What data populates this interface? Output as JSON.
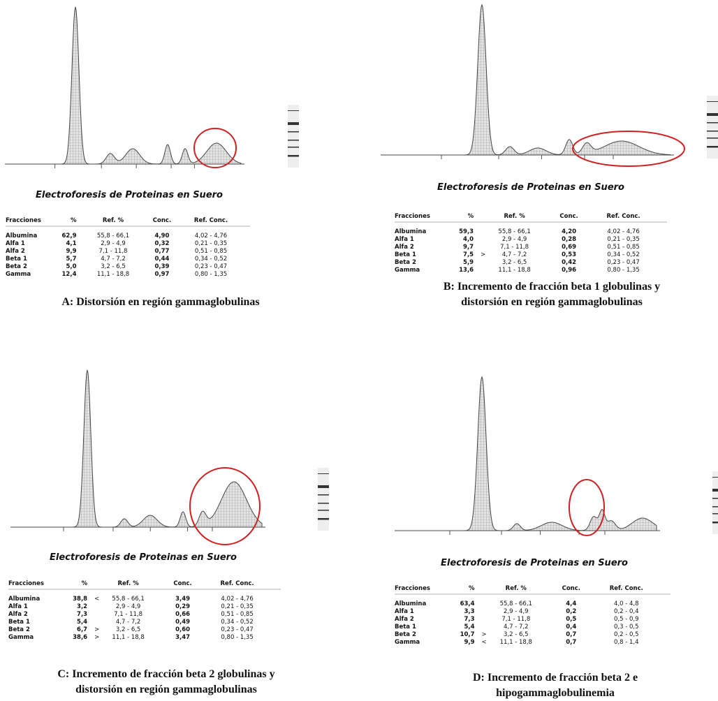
{
  "panels": [
    {
      "title": "Electroforesis de Proteinas en Suero",
      "header": [
        "Fracciones",
        "%",
        "Ref. %",
        "Conc.",
        "Ref. Conc."
      ],
      "rows": [
        {
          "fraction": "Albumina",
          "pct": "62,9",
          "ref": "55,8 - 66,1",
          "conc": "4,90",
          "ref_conc": "4,02 - 4,76"
        },
        {
          "fraction": "Alfa 1",
          "pct": "4,1",
          "ref": "2,9 - 4,9",
          "conc": "0,32",
          "ref_conc": "0,21 - 0,35"
        },
        {
          "fraction": "Alfa 2",
          "pct": "9,9",
          "ref": "7,1 - 11,8",
          "conc": "0,77",
          "ref_conc": "0,51 - 0,85"
        },
        {
          "fraction": "Beta 1",
          "pct": "5,7",
          "ref": "4,7 - 7,2",
          "conc": "0,44",
          "ref_conc": "0,34 - 0,52"
        },
        {
          "fraction": "Beta 2",
          "pct": "5,0",
          "ref": "3,2 - 6,5",
          "conc": "0,39",
          "ref_conc": "0,23 - 0,47"
        },
        {
          "fraction": "Gamma",
          "pct": "12,4",
          "ref": "11,1 - 18,8",
          "conc": "0,97",
          "ref_conc": "0,80 - 1,35"
        }
      ],
      "caption": [
        "A: Distorsión en región gammaglobulinas"
      ]
    },
    {
      "title": "Electroforesis de Proteinas en Suero",
      "header": [
        "Fracciones",
        "%",
        "Ref. %",
        "Conc.",
        "Ref. Conc."
      ],
      "rows": [
        {
          "fraction": "Albumina",
          "pct": "59,3",
          "ref": "55,8 - 66,1",
          "conc": "4,20",
          "ref_conc": "4,02 - 4,76"
        },
        {
          "fraction": "Alfa 1",
          "pct": "4,0",
          "ref": "2,9 - 4,9",
          "conc": "0,28",
          "ref_conc": "0,21 - 0,35"
        },
        {
          "fraction": "Alfa 2",
          "pct": "9,7",
          "ref": "7,1 - 11,8",
          "conc": "0,69",
          "ref_conc": "0,51 - 0,85"
        },
        {
          "fraction": "Beta 1",
          "pct": "7,5",
          "flag": ">",
          "ref": "4,7 - 7,2",
          "conc": "0,53",
          "ref_conc": "0,34 - 0,52"
        },
        {
          "fraction": "Beta 2",
          "pct": "5,9",
          "ref": "3,2 - 6,5",
          "conc": "0,42",
          "ref_conc": "0,23 - 0,47"
        },
        {
          "fraction": "Gamma",
          "pct": "13,6",
          "ref": "11,1 - 18,8",
          "conc": "0,96",
          "ref_conc": "0,80 - 1,35"
        }
      ],
      "caption": [
        "B: Incremento de fracción beta 1 globulinas y",
        "distorsión en región gammaglobulinas"
      ]
    },
    {
      "title": "Electroforesis de Proteinas en Suero",
      "header": [
        "Fracciones",
        "%",
        "Ref. %",
        "Conc.",
        "Ref. Conc."
      ],
      "rows": [
        {
          "fraction": "Albumina",
          "pct": "38,8",
          "flag": "<",
          "ref": "55,8 - 66,1",
          "conc": "3,49",
          "ref_conc": "4,02 - 4,76"
        },
        {
          "fraction": "Alfa 1",
          "pct": "3,2",
          "ref": "2,9 - 4,9",
          "conc": "0,29",
          "ref_conc": "0,21 - 0,35"
        },
        {
          "fraction": "Alfa 2",
          "pct": "7,3",
          "ref": "7,1 - 11,8",
          "conc": "0,66",
          "ref_conc": "0,51 - 0,85"
        },
        {
          "fraction": "Beta 1",
          "pct": "5,4",
          "ref": "4,7 - 7,2",
          "conc": "0,49",
          "ref_conc": "0,34 - 0,52"
        },
        {
          "fraction": "Beta 2",
          "pct": "6,7",
          "flag": ">",
          "ref": "3,2 - 6,5",
          "conc": "0,60",
          "ref_conc": "0,23 - 0,47"
        },
        {
          "fraction": "Gamma",
          "pct": "38,6",
          "flag": ">",
          "ref": "11,1 - 18,8",
          "conc": "3,47",
          "ref_conc": "0,80 - 1,35"
        }
      ],
      "caption": [
        "C: Incremento de fracción beta 2 globulinas y",
        "distorsión en región gammaglobulinas"
      ]
    },
    {
      "title": "Electroforesis de Proteinas en Suero",
      "header": [
        "Fracciones",
        "%",
        "Ref. %",
        "Conc.",
        "Ref. Conc."
      ],
      "rows": [
        {
          "fraction": "Albumina",
          "pct": "63,4",
          "ref": "55,8 - 66,1",
          "conc": "4,4",
          "ref_conc": "4,0 - 4,8"
        },
        {
          "fraction": "Alfa 1",
          "pct": "3,3",
          "ref": "2,9 - 4,9",
          "conc": "0,2",
          "ref_conc": "0,2 - 0,4"
        },
        {
          "fraction": "Alfa 2",
          "pct": "7,3",
          "ref": "7,1 - 11,8",
          "conc": "0,5",
          "ref_conc": "0,5 - 0,9"
        },
        {
          "fraction": "Beta 1",
          "pct": "5,4",
          "ref": "4,7 - 7,2",
          "conc": "0,4",
          "ref_conc": "0,3 - 0,5"
        },
        {
          "fraction": "Beta 2",
          "pct": "10,7",
          "flag": ">",
          "ref": "3,2 - 6,5",
          "conc": "0,7",
          "ref_conc": "0,2 - 0,5"
        },
        {
          "fraction": "Gamma",
          "pct": "9,9",
          "flag": "<",
          "ref": "11,1 - 18,8",
          "conc": "0,7",
          "ref_conc": "0,8 - 1,4"
        }
      ],
      "caption": [
        "D: Incremento de fracción beta 2 e",
        "hipogammaglobulinemia"
      ]
    }
  ]
}
